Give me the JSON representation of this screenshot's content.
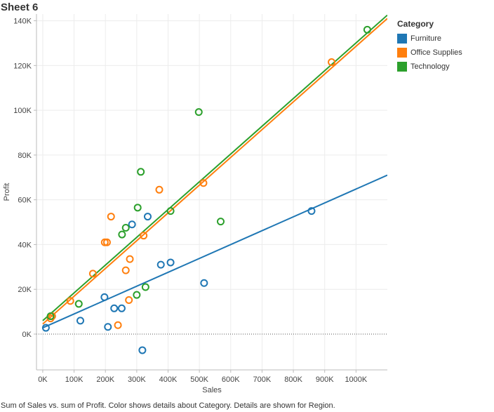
{
  "sheet": {
    "title": "Sheet 6",
    "caption": "Sum of Sales vs. sum of Profit.  Color shows details about Category.  Details are shown for Region."
  },
  "legend": {
    "title": "Category",
    "items": [
      {
        "label": "Furniture",
        "color": "#1f77b4"
      },
      {
        "label": "Office Supplies",
        "color": "#ff7f0e"
      },
      {
        "label": "Technology",
        "color": "#2ca02c"
      }
    ]
  },
  "chart_data": {
    "type": "scatter",
    "xlabel": "Sales",
    "ylabel": "Profit",
    "xlim": [
      -20000,
      1100000
    ],
    "ylim": [
      -16000,
      143000
    ],
    "x_ticks": [
      0,
      100000,
      200000,
      300000,
      400000,
      500000,
      600000,
      700000,
      800000,
      900000,
      1000000
    ],
    "x_tick_labels": [
      "0K",
      "100K",
      "200K",
      "300K",
      "400K",
      "500K",
      "600K",
      "700K",
      "800K",
      "900K",
      "1000K"
    ],
    "y_ticks": [
      0,
      20000,
      40000,
      60000,
      80000,
      100000,
      120000,
      140000
    ],
    "y_tick_labels": [
      "0K",
      "20K",
      "40K",
      "60K",
      "80K",
      "100K",
      "120K",
      "140K"
    ],
    "grid": true,
    "zero_line": "dotted",
    "legend_position": "right",
    "series": [
      {
        "name": "Furniture",
        "color": "#1f77b4",
        "points": [
          [
            10000,
            2800
          ],
          [
            120000,
            6000
          ],
          [
            208000,
            3200
          ],
          [
            197000,
            16500
          ],
          [
            228000,
            11500
          ],
          [
            252000,
            11500
          ],
          [
            285000,
            49000
          ],
          [
            335000,
            52500
          ],
          [
            318000,
            -7200
          ],
          [
            377000,
            31000
          ],
          [
            408000,
            32000
          ],
          [
            515000,
            22800
          ],
          [
            858000,
            55000
          ]
        ],
        "trend": [
          [
            0,
            2800
          ],
          [
            1100000,
            71000
          ]
        ]
      },
      {
        "name": "Office Supplies",
        "color": "#ff7f0e",
        "points": [
          [
            25000,
            7000
          ],
          [
            30000,
            8000
          ],
          [
            88000,
            14800
          ],
          [
            160000,
            27000
          ],
          [
            198000,
            41000
          ],
          [
            205000,
            41000
          ],
          [
            218000,
            52500
          ],
          [
            240000,
            4000
          ],
          [
            265000,
            28500
          ],
          [
            278000,
            33500
          ],
          [
            275000,
            15200
          ],
          [
            322000,
            44000
          ],
          [
            372000,
            64500
          ],
          [
            513000,
            67500
          ],
          [
            922000,
            121500
          ]
        ],
        "trend": [
          [
            0,
            4500
          ],
          [
            1100000,
            141000
          ]
        ]
      },
      {
        "name": "Technology",
        "color": "#2ca02c",
        "points": [
          [
            25000,
            8000
          ],
          [
            115000,
            13500
          ],
          [
            253000,
            44500
          ],
          [
            265000,
            47500
          ],
          [
            300000,
            17500
          ],
          [
            303000,
            56500
          ],
          [
            313000,
            72500
          ],
          [
            328000,
            21000
          ],
          [
            408000,
            55000
          ],
          [
            498000,
            99200
          ],
          [
            568000,
            50300
          ],
          [
            1036000,
            136000
          ]
        ],
        "trend": [
          [
            0,
            6000
          ],
          [
            1100000,
            142500
          ]
        ]
      }
    ]
  }
}
